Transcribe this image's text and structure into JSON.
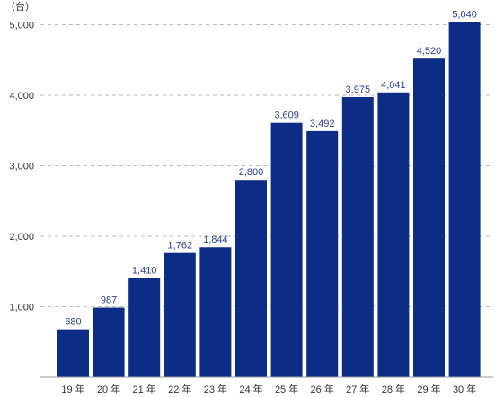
{
  "chart_data": {
    "type": "bar",
    "unit": "（台）",
    "categories": [
      "19 年",
      "20 年",
      "21 年",
      "22 年",
      "23 年",
      "24 年",
      "25 年",
      "26 年",
      "27 年",
      "28 年",
      "29 年",
      "30 年"
    ],
    "values": [
      680,
      987,
      1410,
      1762,
      1844,
      2800,
      3609,
      3492,
      3975,
      4041,
      4520,
      5040
    ],
    "value_labels": [
      "680",
      "987",
      "1,410",
      "1,762",
      "1,844",
      "2,800",
      "3,609",
      "3,492",
      "3,975",
      "4,041",
      "4,520",
      "5,040"
    ],
    "yticks": [
      {
        "value": 1000,
        "label": "1,000"
      },
      {
        "value": 2000,
        "label": "2,000"
      },
      {
        "value": 3000,
        "label": "3,000"
      },
      {
        "value": 4000,
        "label": "4,000"
      },
      {
        "value": 5000,
        "label": "5,000"
      }
    ],
    "ylim": [
      0,
      5000
    ],
    "grid": true,
    "legend": "none",
    "bar_color": "#0d2c86",
    "label_color": "#2b3f8f",
    "grid_color": "#bbbbbb"
  }
}
